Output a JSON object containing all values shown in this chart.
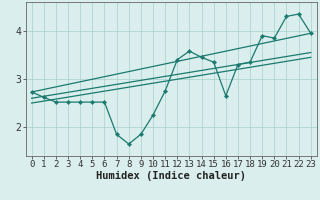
{
  "xlabel": "Humidex (Indice chaleur)",
  "ylabel": "",
  "bg_color": "#daeeed",
  "grid_color": "#a8d0cc",
  "line_color": "#1a7a6e",
  "x_data": [
    0,
    1,
    2,
    3,
    4,
    5,
    6,
    7,
    8,
    9,
    10,
    11,
    12,
    13,
    14,
    15,
    16,
    17,
    18,
    19,
    20,
    21,
    22,
    23
  ],
  "y_main": [
    2.73,
    2.62,
    2.52,
    2.52,
    2.52,
    2.52,
    2.52,
    1.85,
    1.65,
    1.85,
    2.25,
    2.75,
    3.4,
    3.58,
    3.45,
    3.35,
    2.65,
    3.3,
    3.35,
    3.9,
    3.85,
    4.3,
    4.35,
    3.95
  ],
  "regression_lines": [
    {
      "x0": 0,
      "y0": 2.73,
      "x1": 23,
      "y1": 3.95
    },
    {
      "x0": 0,
      "y0": 2.6,
      "x1": 23,
      "y1": 3.55
    },
    {
      "x0": 0,
      "y0": 2.5,
      "x1": 23,
      "y1": 3.45
    }
  ],
  "xlim": [
    -0.5,
    23.5
  ],
  "ylim": [
    1.4,
    4.6
  ],
  "yticks": [
    2,
    3,
    4
  ],
  "xticks": [
    0,
    1,
    2,
    3,
    4,
    5,
    6,
    7,
    8,
    9,
    10,
    11,
    12,
    13,
    14,
    15,
    16,
    17,
    18,
    19,
    20,
    21,
    22,
    23
  ],
  "tick_fontsize": 6.5,
  "label_fontsize": 7.5
}
